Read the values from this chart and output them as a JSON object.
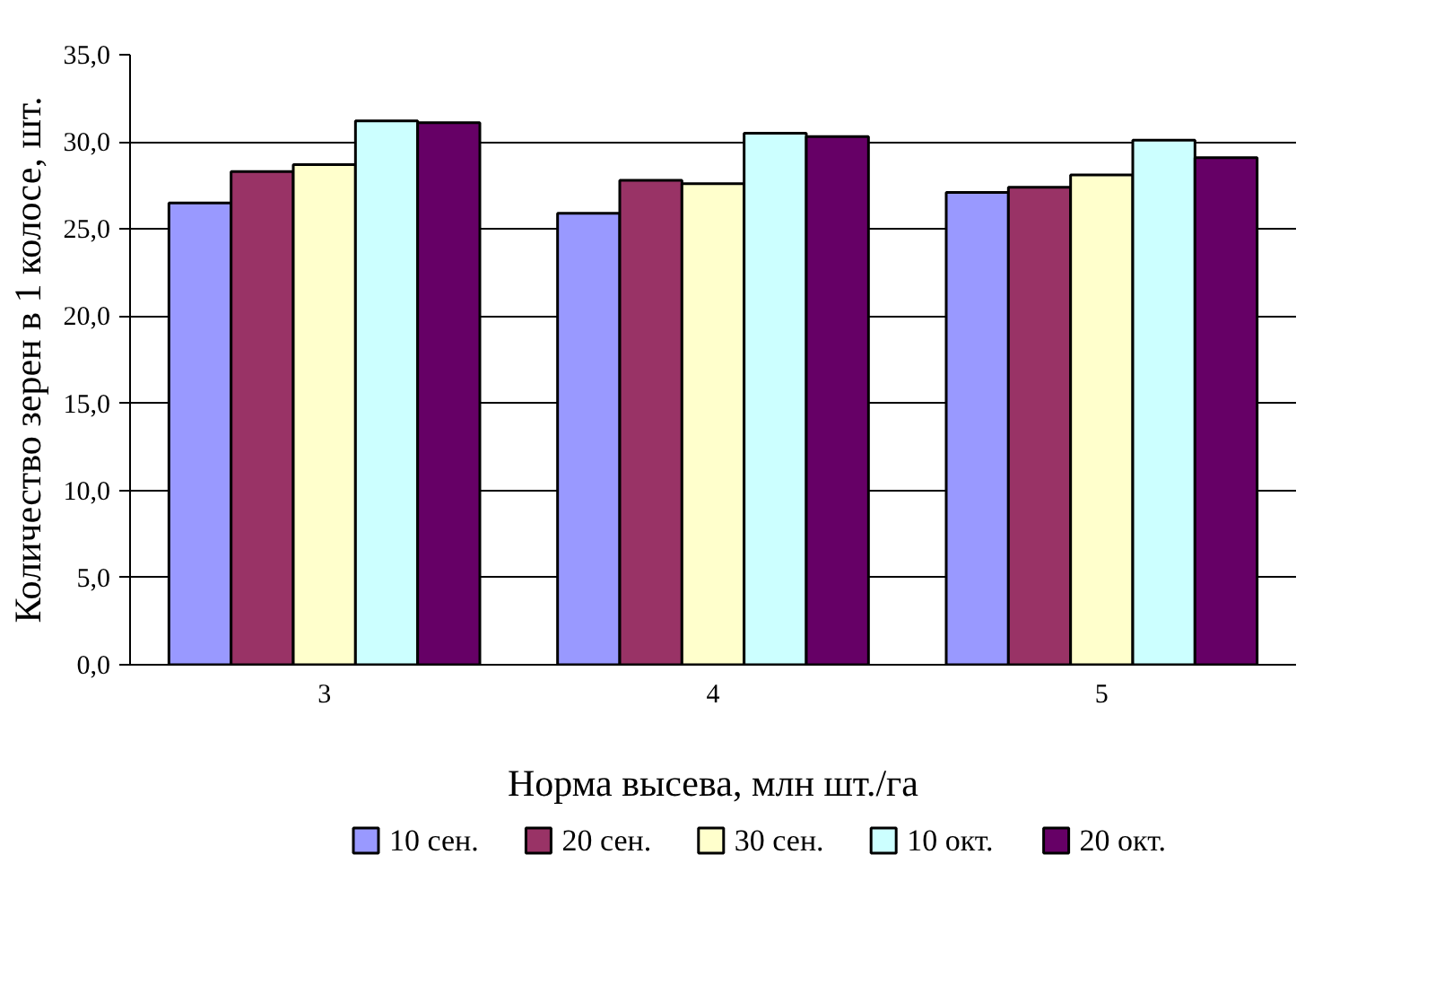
{
  "chart_data": {
    "type": "bar",
    "xlabel": "Норма высева, млн шт./га",
    "ylabel": "Количество зерен в 1 колосе, шт.",
    "categories": [
      "3",
      "4",
      "5"
    ],
    "series": [
      {
        "name": "10 сен.",
        "color": "#9999ff",
        "values": [
          26.5,
          25.9,
          27.1
        ]
      },
      {
        "name": "20 сен.",
        "color": "#993366",
        "values": [
          28.3,
          27.8,
          27.4
        ]
      },
      {
        "name": "30 сен.",
        "color": "#ffffcc",
        "values": [
          28.7,
          27.6,
          28.1
        ]
      },
      {
        "name": "10 окт.",
        "color": "#ccffff",
        "values": [
          31.2,
          30.5,
          30.1
        ]
      },
      {
        "name": "20 окт.",
        "color": "#660066",
        "values": [
          31.1,
          30.3,
          29.1
        ]
      }
    ],
    "ylim": [
      0,
      35
    ],
    "yticks": [
      {
        "value": 0,
        "label": "0,0"
      },
      {
        "value": 5,
        "label": "5,0"
      },
      {
        "value": 10,
        "label": "10,0"
      },
      {
        "value": 15,
        "label": "15,0"
      },
      {
        "value": 20,
        "label": "20,0"
      },
      {
        "value": 25,
        "label": "25,0"
      },
      {
        "value": 30,
        "label": "30,0"
      },
      {
        "value": 35,
        "label": "35,0"
      }
    ],
    "grid": "y",
    "legend": "bottom"
  }
}
